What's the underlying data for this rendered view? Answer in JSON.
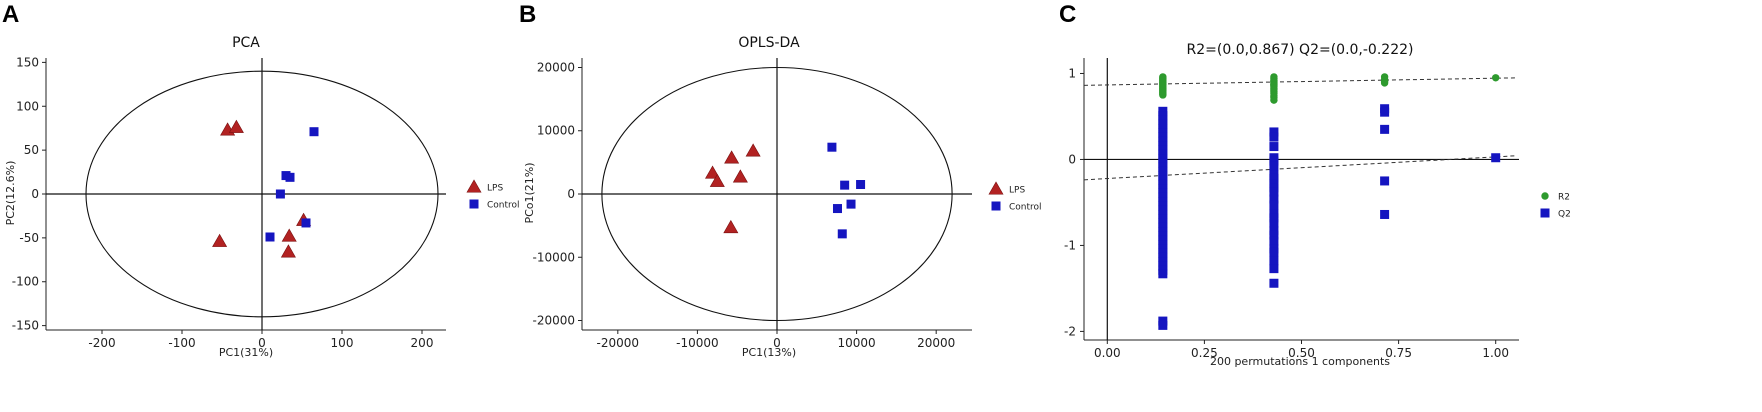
{
  "figure": {
    "panel_labels": [
      "A",
      "B",
      "C"
    ]
  },
  "chart_data": [
    {
      "type": "scatter",
      "panel": "A",
      "title": "PCA",
      "xlabel": "PC1(31%)",
      "ylabel": "PC2(12.6%)",
      "xlim": [
        -270,
        230
      ],
      "ylim": [
        -155,
        155
      ],
      "xticks": [
        -200,
        -100,
        0,
        100,
        200
      ],
      "yticks": [
        -150,
        -100,
        -50,
        0,
        50,
        100,
        150
      ],
      "ellipse": {
        "cx": 0,
        "cy": 0,
        "rx": 220,
        "ry": 140
      },
      "reference_lines": {
        "x": 0,
        "y": 0
      },
      "legend": {
        "position": "right"
      },
      "series": [
        {
          "name": "LPS",
          "marker": "triangle",
          "color": "#b22222",
          "points": [
            [
              -43,
              73
            ],
            [
              -32,
              76
            ],
            [
              -53,
              -54
            ],
            [
              52,
              -30
            ],
            [
              34,
              -48
            ],
            [
              33,
              -66
            ]
          ]
        },
        {
          "name": "Control",
          "marker": "square",
          "color": "#1515c0",
          "points": [
            [
              65,
              71
            ],
            [
              30,
              21
            ],
            [
              35,
              19
            ],
            [
              23,
              0
            ],
            [
              10,
              -49
            ],
            [
              55,
              -33
            ]
          ]
        }
      ]
    },
    {
      "type": "scatter",
      "panel": "B",
      "title": "OPLS-DA",
      "xlabel": "PC1(13%)",
      "ylabel": "PCo1(21%)",
      "xlim": [
        -24500,
        24500
      ],
      "ylim": [
        -21500,
        21500
      ],
      "xticks": [
        -20000,
        -10000,
        0,
        10000,
        20000
      ],
      "yticks": [
        -20000,
        -10000,
        0,
        10000,
        20000
      ],
      "ellipse": {
        "cx": 0,
        "cy": 0,
        "rx": 22000,
        "ry": 20000
      },
      "reference_lines": {
        "x": 0,
        "y": 0
      },
      "legend": {
        "position": "right"
      },
      "series": [
        {
          "name": "LPS",
          "marker": "triangle",
          "color": "#b22222",
          "points": [
            [
              -3000,
              6800
            ],
            [
              -5700,
              5700
            ],
            [
              -8100,
              3300
            ],
            [
              -4600,
              2700
            ],
            [
              -7500,
              2000
            ],
            [
              -5800,
              -5300
            ]
          ]
        },
        {
          "name": "Control",
          "marker": "square",
          "color": "#1515c0",
          "points": [
            [
              6900,
              7400
            ],
            [
              10500,
              1500
            ],
            [
              8500,
              1400
            ],
            [
              9300,
              -1600
            ],
            [
              7600,
              -2300
            ],
            [
              8200,
              -6300
            ]
          ]
        }
      ]
    },
    {
      "type": "scatter",
      "panel": "C",
      "title": "R2=(0.0,0.867)    Q2=(0.0,-0.222)",
      "xlabel": "200 permutations 1 components",
      "ylabel": "",
      "xlim": [
        -0.06,
        1.06
      ],
      "ylim": [
        -2.1,
        1.18
      ],
      "xticks": [
        0.0,
        0.25,
        0.5,
        0.75,
        1.0
      ],
      "xtick_labels": [
        "0.00",
        "0.25",
        "0.50",
        "0.75",
        "1.00"
      ],
      "yticks": [
        -2,
        -1,
        0,
        1
      ],
      "reference_lines": {
        "x": 0,
        "y": 0
      },
      "legend": {
        "position": "right"
      },
      "regression_lines": [
        {
          "name": "R2",
          "intercept": 0.867,
          "end": [
            1.0,
            0.945
          ]
        },
        {
          "name": "Q2",
          "intercept": -0.222,
          "end": [
            1.0,
            0.03
          ]
        }
      ],
      "series": [
        {
          "name": "R2",
          "marker": "circle",
          "color": "#2e9a2e",
          "columns": [
            {
              "x": 0.143,
              "values": [
                0.96,
                0.95,
                0.94,
                0.93,
                0.92,
                0.91,
                0.9,
                0.89,
                0.88,
                0.87,
                0.86,
                0.85,
                0.84,
                0.83,
                0.82,
                0.81,
                0.8,
                0.79,
                0.78,
                0.77,
                0.76,
                0.75
              ]
            },
            {
              "x": 0.429,
              "values": [
                0.96,
                0.94,
                0.92,
                0.91,
                0.9,
                0.88,
                0.87,
                0.86,
                0.85,
                0.83,
                0.81,
                0.79,
                0.77,
                0.74,
                0.72,
                0.69
              ]
            },
            {
              "x": 0.714,
              "values": [
                0.96,
                0.93,
                0.91,
                0.89
              ]
            },
            {
              "x": 1.0,
              "values": [
                0.95
              ]
            }
          ]
        },
        {
          "name": "Q2",
          "marker": "square",
          "color": "#1515c0",
          "columns": [
            {
              "x": 0.143,
              "values": [
                0.56,
                0.51,
                0.46,
                0.41,
                0.36,
                0.31,
                0.26,
                0.21,
                0.16,
                0.11,
                0.06,
                0.01,
                -0.04,
                -0.09,
                -0.14,
                -0.19,
                -0.24,
                -0.29,
                -0.34,
                -0.39,
                -0.44,
                -0.49,
                -0.54,
                -0.59,
                -0.64,
                -0.69,
                -0.74,
                -0.79,
                -0.84,
                -0.89,
                -0.94,
                -0.99,
                -1.04,
                -1.09,
                -1.14,
                -1.19,
                -1.24,
                -1.29,
                -1.33,
                -1.88,
                -1.93
              ]
            },
            {
              "x": 0.429,
              "values": [
                0.32,
                0.26,
                0.15,
                0.02,
                -0.02,
                -0.08,
                -0.18,
                -0.22,
                -0.28,
                -0.33,
                -0.38,
                -0.46,
                -0.53,
                -0.63,
                -0.68,
                -0.74,
                -0.83,
                -0.88,
                -0.95,
                -1.04,
                -1.08,
                -1.18,
                -1.27,
                -1.44
              ]
            },
            {
              "x": 0.714,
              "values": [
                0.59,
                0.55,
                0.35,
                -0.25,
                -0.64
              ]
            },
            {
              "x": 1.0,
              "values": [
                0.02
              ]
            }
          ]
        }
      ]
    }
  ]
}
